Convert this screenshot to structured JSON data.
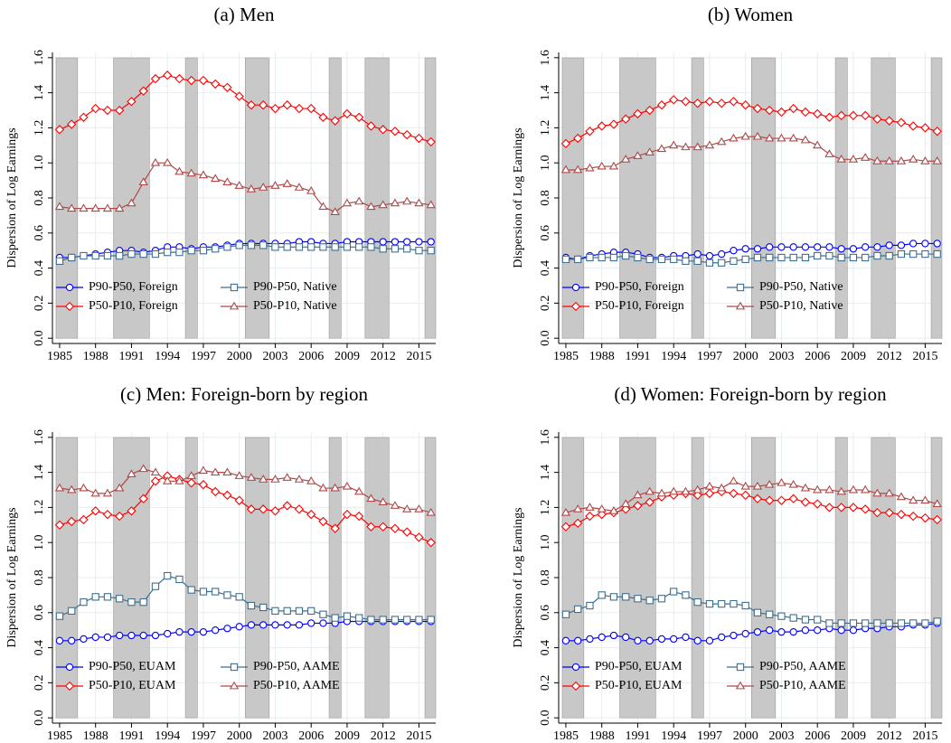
{
  "chart_data": [
    {
      "type": "line",
      "title": "(a) Men",
      "y_label": "Dispersion of Log Earnings",
      "x": [
        1985,
        1986,
        1987,
        1988,
        1989,
        1990,
        1991,
        1992,
        1993,
        1994,
        1995,
        1996,
        1997,
        1998,
        1999,
        2000,
        2001,
        2002,
        2003,
        2004,
        2005,
        2006,
        2007,
        2008,
        2009,
        2010,
        2011,
        2012,
        2013,
        2014,
        2015,
        2016
      ],
      "xlim": [
        1984.4,
        2016.4
      ],
      "xticks": [
        1985,
        1988,
        1991,
        1994,
        1997,
        2000,
        2003,
        2006,
        2009,
        2012,
        2015
      ],
      "ylim": [
        -0.03,
        1.63
      ],
      "yticks": [
        {
          "value": 0,
          "label": "0.0"
        },
        0.2,
        0.4,
        0.6,
        0.8,
        {
          "value": 1,
          "label": "1.0"
        },
        1.2,
        1.4,
        1.6
      ],
      "grid": true,
      "legend": "lower left",
      "shaded_periods": [
        [
          1984.7,
          1986.5
        ],
        [
          1989.5,
          1992.5
        ],
        [
          1995.5,
          1996.5
        ],
        [
          2000.5,
          2002.5
        ],
        [
          2007.5,
          2008.5
        ],
        [
          2010.5,
          2012.5
        ],
        [
          2015.5,
          2016.4
        ]
      ],
      "series": [
        {
          "name": "P90-P50, Foreign",
          "color": "#0000ff",
          "marker": "circle",
          "values": [
            0.46,
            0.46,
            0.47,
            0.48,
            0.49,
            0.5,
            0.5,
            0.49,
            0.5,
            0.52,
            0.52,
            0.51,
            0.52,
            0.52,
            0.53,
            0.54,
            0.54,
            0.54,
            0.54,
            0.54,
            0.55,
            0.55,
            0.54,
            0.54,
            0.55,
            0.55,
            0.55,
            0.55,
            0.55,
            0.55,
            0.55,
            0.55
          ]
        },
        {
          "name": "P90-P50, Native",
          "color": "#3f6f8f",
          "marker": "square",
          "values": [
            0.44,
            0.46,
            0.47,
            0.47,
            0.47,
            0.47,
            0.48,
            0.48,
            0.48,
            0.49,
            0.49,
            0.5,
            0.5,
            0.51,
            0.52,
            0.53,
            0.53,
            0.53,
            0.52,
            0.52,
            0.52,
            0.52,
            0.52,
            0.52,
            0.52,
            0.52,
            0.52,
            0.51,
            0.51,
            0.51,
            0.5,
            0.5
          ]
        },
        {
          "name": "P50-P10, Foreign",
          "color": "#ff0000",
          "marker": "diamond",
          "values": [
            1.19,
            1.22,
            1.26,
            1.31,
            1.3,
            1.3,
            1.35,
            1.41,
            1.48,
            1.5,
            1.48,
            1.47,
            1.47,
            1.45,
            1.43,
            1.38,
            1.33,
            1.33,
            1.31,
            1.33,
            1.31,
            1.31,
            1.26,
            1.24,
            1.28,
            1.26,
            1.21,
            1.19,
            1.18,
            1.16,
            1.14,
            1.12
          ]
        },
        {
          "name": "P50-P10, Native",
          "color": "#b04848",
          "marker": "triangle",
          "values": [
            0.75,
            0.74,
            0.74,
            0.74,
            0.74,
            0.74,
            0.77,
            0.89,
            1.0,
            1.0,
            0.95,
            0.94,
            0.93,
            0.91,
            0.89,
            0.87,
            0.85,
            0.86,
            0.87,
            0.88,
            0.86,
            0.84,
            0.75,
            0.72,
            0.77,
            0.78,
            0.75,
            0.76,
            0.77,
            0.78,
            0.77,
            0.76
          ]
        }
      ]
    },
    {
      "type": "line",
      "title": "(b) Women",
      "y_label": "Dispersion of Log Earnings",
      "x": [
        1985,
        1986,
        1987,
        1988,
        1989,
        1990,
        1991,
        1992,
        1993,
        1994,
        1995,
        1996,
        1997,
        1998,
        1999,
        2000,
        2001,
        2002,
        2003,
        2004,
        2005,
        2006,
        2007,
        2008,
        2009,
        2010,
        2011,
        2012,
        2013,
        2014,
        2015,
        2016
      ],
      "xlim": [
        1984.4,
        2016.4
      ],
      "xticks": [
        1985,
        1988,
        1991,
        1994,
        1997,
        2000,
        2003,
        2006,
        2009,
        2012,
        2015
      ],
      "ylim": [
        -0.03,
        1.63
      ],
      "yticks": [
        {
          "value": 0,
          "label": "0.0"
        },
        0.2,
        0.4,
        0.6,
        0.8,
        {
          "value": 1,
          "label": "1.0"
        },
        1.2,
        1.4,
        1.6
      ],
      "grid": true,
      "legend": "lower left",
      "shaded_periods": [
        [
          1984.7,
          1986.5
        ],
        [
          1989.5,
          1992.5
        ],
        [
          1995.5,
          1996.5
        ],
        [
          2000.5,
          2002.5
        ],
        [
          2007.5,
          2008.5
        ],
        [
          2010.5,
          2012.5
        ],
        [
          2015.5,
          2016.4
        ]
      ],
      "series": [
        {
          "name": "P90-P50, Foreign",
          "color": "#0000ff",
          "marker": "circle",
          "values": [
            0.46,
            0.45,
            0.47,
            0.48,
            0.49,
            0.49,
            0.48,
            0.46,
            0.46,
            0.47,
            0.47,
            0.48,
            0.47,
            0.48,
            0.5,
            0.51,
            0.51,
            0.52,
            0.52,
            0.52,
            0.52,
            0.52,
            0.52,
            0.51,
            0.51,
            0.52,
            0.52,
            0.53,
            0.53,
            0.54,
            0.54,
            0.54
          ]
        },
        {
          "name": "P90-P50, Native",
          "color": "#3f6f8f",
          "marker": "square",
          "values": [
            0.45,
            0.45,
            0.46,
            0.46,
            0.46,
            0.47,
            0.46,
            0.45,
            0.45,
            0.45,
            0.44,
            0.44,
            0.43,
            0.43,
            0.44,
            0.45,
            0.46,
            0.46,
            0.46,
            0.46,
            0.46,
            0.47,
            0.47,
            0.46,
            0.46,
            0.46,
            0.47,
            0.47,
            0.48,
            0.48,
            0.48,
            0.48
          ]
        },
        {
          "name": "P50-P10, Foreign",
          "color": "#ff0000",
          "marker": "diamond",
          "values": [
            1.11,
            1.14,
            1.18,
            1.21,
            1.22,
            1.25,
            1.28,
            1.3,
            1.33,
            1.36,
            1.35,
            1.34,
            1.35,
            1.34,
            1.35,
            1.33,
            1.31,
            1.3,
            1.29,
            1.31,
            1.29,
            1.28,
            1.26,
            1.27,
            1.27,
            1.27,
            1.25,
            1.24,
            1.23,
            1.21,
            1.2,
            1.18
          ]
        },
        {
          "name": "P50-P10, Native",
          "color": "#b04848",
          "marker": "triangle",
          "values": [
            0.96,
            0.96,
            0.97,
            0.98,
            0.98,
            1.02,
            1.04,
            1.06,
            1.08,
            1.1,
            1.09,
            1.09,
            1.1,
            1.12,
            1.14,
            1.15,
            1.15,
            1.14,
            1.14,
            1.14,
            1.13,
            1.1,
            1.05,
            1.02,
            1.02,
            1.03,
            1.01,
            1.01,
            1.01,
            1.02,
            1.01,
            1.01
          ]
        }
      ]
    },
    {
      "type": "line",
      "title": "(c) Men: Foreign-born by region",
      "y_label": "Dispersion of Log Earnings",
      "x": [
        1985,
        1986,
        1987,
        1988,
        1989,
        1990,
        1991,
        1992,
        1993,
        1994,
        1995,
        1996,
        1997,
        1998,
        1999,
        2000,
        2001,
        2002,
        2003,
        2004,
        2005,
        2006,
        2007,
        2008,
        2009,
        2010,
        2011,
        2012,
        2013,
        2014,
        2015,
        2016
      ],
      "xlim": [
        1984.4,
        2016.4
      ],
      "xticks": [
        1985,
        1988,
        1991,
        1994,
        1997,
        2000,
        2003,
        2006,
        2009,
        2012,
        2015
      ],
      "ylim": [
        -0.03,
        1.63
      ],
      "yticks": [
        {
          "value": 0,
          "label": "0.0"
        },
        0.2,
        0.4,
        0.6,
        0.8,
        {
          "value": 1,
          "label": "1.0"
        },
        1.2,
        1.4,
        1.6
      ],
      "grid": true,
      "legend": "lower left",
      "shaded_periods": [
        [
          1984.7,
          1986.5
        ],
        [
          1989.5,
          1992.5
        ],
        [
          1995.5,
          1996.5
        ],
        [
          2000.5,
          2002.5
        ],
        [
          2007.5,
          2008.5
        ],
        [
          2010.5,
          2012.5
        ],
        [
          2015.5,
          2016.4
        ]
      ],
      "series": [
        {
          "name": "P90-P50, EUAM",
          "color": "#0000ff",
          "marker": "circle",
          "values": [
            0.44,
            0.44,
            0.45,
            0.46,
            0.46,
            0.47,
            0.47,
            0.47,
            0.47,
            0.48,
            0.49,
            0.49,
            0.49,
            0.5,
            0.51,
            0.52,
            0.53,
            0.53,
            0.53,
            0.53,
            0.53,
            0.54,
            0.54,
            0.54,
            0.55,
            0.55,
            0.55,
            0.55,
            0.55,
            0.55,
            0.55,
            0.55
          ]
        },
        {
          "name": "P90-P50, AAME",
          "color": "#3f6f8f",
          "marker": "square",
          "values": [
            0.58,
            0.61,
            0.66,
            0.69,
            0.69,
            0.68,
            0.66,
            0.66,
            0.75,
            0.81,
            0.79,
            0.73,
            0.72,
            0.72,
            0.7,
            0.69,
            0.64,
            0.63,
            0.61,
            0.61,
            0.61,
            0.61,
            0.59,
            0.57,
            0.58,
            0.57,
            0.56,
            0.56,
            0.56,
            0.56,
            0.56,
            0.56
          ]
        },
        {
          "name": "P50-P10, EUAM",
          "color": "#ff0000",
          "marker": "diamond",
          "values": [
            1.1,
            1.12,
            1.13,
            1.18,
            1.16,
            1.15,
            1.18,
            1.25,
            1.35,
            1.38,
            1.36,
            1.34,
            1.33,
            1.29,
            1.27,
            1.24,
            1.19,
            1.19,
            1.18,
            1.21,
            1.19,
            1.16,
            1.12,
            1.08,
            1.16,
            1.15,
            1.09,
            1.09,
            1.08,
            1.06,
            1.03,
            1.0
          ]
        },
        {
          "name": "P50-P10, AAME",
          "color": "#b04848",
          "marker": "triangle",
          "values": [
            1.31,
            1.3,
            1.31,
            1.28,
            1.28,
            1.31,
            1.39,
            1.42,
            1.4,
            1.35,
            1.35,
            1.38,
            1.41,
            1.4,
            1.4,
            1.38,
            1.37,
            1.36,
            1.36,
            1.37,
            1.36,
            1.35,
            1.31,
            1.31,
            1.32,
            1.29,
            1.25,
            1.23,
            1.21,
            1.19,
            1.19,
            1.17
          ]
        }
      ]
    },
    {
      "type": "line",
      "title": "(d) Women: Foreign-born by region",
      "y_label": "Dispersion of Log Earnings",
      "x": [
        1985,
        1986,
        1987,
        1988,
        1989,
        1990,
        1991,
        1992,
        1993,
        1994,
        1995,
        1996,
        1997,
        1998,
        1999,
        2000,
        2001,
        2002,
        2003,
        2004,
        2005,
        2006,
        2007,
        2008,
        2009,
        2010,
        2011,
        2012,
        2013,
        2014,
        2015,
        2016
      ],
      "xlim": [
        1984.4,
        2016.4
      ],
      "xticks": [
        1985,
        1988,
        1991,
        1994,
        1997,
        2000,
        2003,
        2006,
        2009,
        2012,
        2015
      ],
      "ylim": [
        -0.03,
        1.63
      ],
      "yticks": [
        {
          "value": 0,
          "label": "0.0"
        },
        0.2,
        0.4,
        0.6,
        0.8,
        {
          "value": 1,
          "label": "1.0"
        },
        1.2,
        1.4,
        1.6
      ],
      "grid": true,
      "legend": "lower left",
      "shaded_periods": [
        [
          1984.7,
          1986.5
        ],
        [
          1989.5,
          1992.5
        ],
        [
          1995.5,
          1996.5
        ],
        [
          2000.5,
          2002.5
        ],
        [
          2007.5,
          2008.5
        ],
        [
          2010.5,
          2012.5
        ],
        [
          2015.5,
          2016.4
        ]
      ],
      "series": [
        {
          "name": "P90-P50, EUAM",
          "color": "#0000ff",
          "marker": "circle",
          "values": [
            0.44,
            0.44,
            0.45,
            0.46,
            0.47,
            0.46,
            0.44,
            0.44,
            0.45,
            0.45,
            0.46,
            0.44,
            0.44,
            0.46,
            0.47,
            0.48,
            0.49,
            0.5,
            0.49,
            0.49,
            0.5,
            0.5,
            0.51,
            0.5,
            0.5,
            0.51,
            0.51,
            0.52,
            0.52,
            0.53,
            0.53,
            0.54
          ]
        },
        {
          "name": "P90-P50, AAME",
          "color": "#3f6f8f",
          "marker": "square",
          "values": [
            0.59,
            0.62,
            0.64,
            0.7,
            0.69,
            0.69,
            0.68,
            0.67,
            0.68,
            0.72,
            0.7,
            0.66,
            0.65,
            0.65,
            0.65,
            0.64,
            0.6,
            0.59,
            0.58,
            0.57,
            0.56,
            0.56,
            0.54,
            0.54,
            0.54,
            0.54,
            0.54,
            0.54,
            0.54,
            0.54,
            0.54,
            0.55
          ]
        },
        {
          "name": "P50-P10, EUAM",
          "color": "#ff0000",
          "marker": "diamond",
          "values": [
            1.09,
            1.11,
            1.15,
            1.16,
            1.17,
            1.19,
            1.21,
            1.23,
            1.26,
            1.27,
            1.28,
            1.27,
            1.28,
            1.29,
            1.28,
            1.27,
            1.25,
            1.24,
            1.24,
            1.25,
            1.23,
            1.22,
            1.2,
            1.2,
            1.2,
            1.19,
            1.17,
            1.17,
            1.16,
            1.15,
            1.14,
            1.13
          ]
        },
        {
          "name": "P50-P10, AAME",
          "color": "#b04848",
          "marker": "triangle",
          "values": [
            1.17,
            1.19,
            1.2,
            1.19,
            1.18,
            1.22,
            1.27,
            1.29,
            1.28,
            1.29,
            1.29,
            1.3,
            1.32,
            1.31,
            1.35,
            1.32,
            1.32,
            1.33,
            1.34,
            1.33,
            1.31,
            1.3,
            1.3,
            1.29,
            1.3,
            1.3,
            1.28,
            1.28,
            1.26,
            1.24,
            1.24,
            1.22
          ]
        }
      ]
    }
  ]
}
